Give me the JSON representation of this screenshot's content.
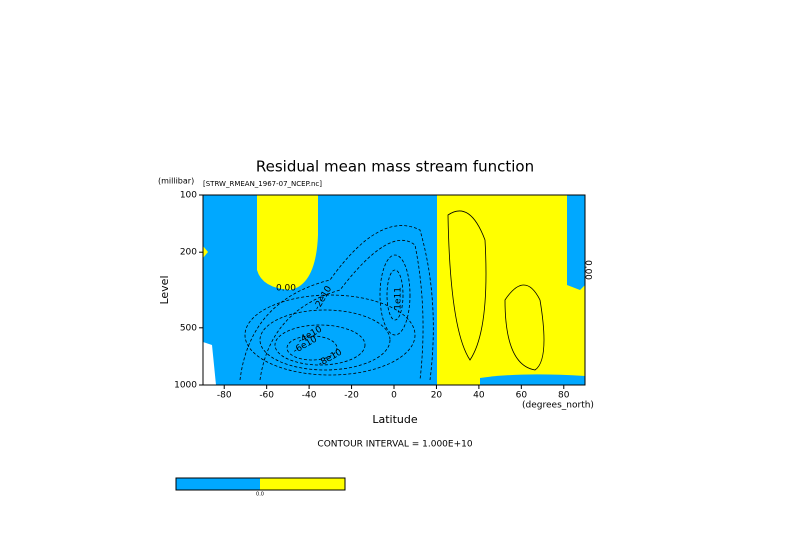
{
  "chart_data": {
    "type": "contour",
    "title": "Residual mean mass stream function",
    "subtitle": "[STRW_RMEAN_1967-07_NCEP.nc]",
    "y_unit": "(millibar)",
    "y_label": "Level",
    "x_label": "Latitude",
    "x_unit": "(degrees_north)",
    "xlim": [
      -90,
      90
    ],
    "xticks": [
      -80,
      -60,
      -40,
      -20,
      0,
      20,
      40,
      60,
      80
    ],
    "ylim": [
      1000,
      100
    ],
    "yticks": [
      100,
      200,
      500,
      1000
    ],
    "y_log": true,
    "negative_color": "#00a8ff",
    "positive_color": "#ffff00",
    "contour_note": "CONTOUR INTERVAL = 1.000E+10",
    "annotations": [
      "0.00",
      "-2e10",
      "-4e10",
      "-6e10",
      "-8e10",
      "-1e11",
      "0.00"
    ],
    "colorbar_labels": [
      "0.0"
    ]
  }
}
